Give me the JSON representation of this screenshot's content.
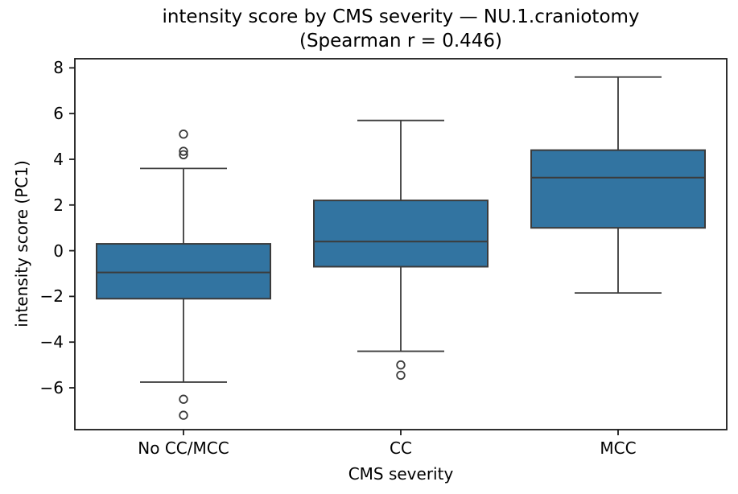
{
  "chart_data": {
    "type": "boxplot",
    "title": "intensity score by CMS severity — NU.1.craniotomy",
    "subtitle": "(Spearman r = 0.446)",
    "spearman_r": 0.446,
    "xlabel": "CMS severity",
    "ylabel": "intensity score (PC1)",
    "categories": [
      "No CC/MCC",
      "CC",
      "MCC"
    ],
    "ylim": [
      -7.83,
      8.4
    ],
    "yticks": [
      {
        "value": 8,
        "label": "8"
      },
      {
        "value": 6,
        "label": "6"
      },
      {
        "value": 4,
        "label": "4"
      },
      {
        "value": 2,
        "label": "2"
      },
      {
        "value": 0,
        "label": "0"
      },
      {
        "value": -2,
        "label": "−2"
      },
      {
        "value": -4,
        "label": "−4"
      },
      {
        "value": -6,
        "label": "−6"
      }
    ],
    "series": [
      {
        "category": "No CC/MCC",
        "whisker_low": -5.75,
        "q1": -2.1,
        "median": -0.95,
        "q3": 0.3,
        "whisker_high": 3.6,
        "outliers": [
          5.1,
          4.35,
          4.2,
          -6.5,
          -7.2
        ]
      },
      {
        "category": "CC",
        "whisker_low": -4.4,
        "q1": -0.7,
        "median": 0.4,
        "q3": 2.2,
        "whisker_high": 5.7,
        "outliers": [
          -5.0,
          -5.45
        ]
      },
      {
        "category": "MCC",
        "whisker_low": -1.85,
        "q1": 1.0,
        "median": 3.2,
        "q3": 4.4,
        "whisker_high": 7.6,
        "outliers": []
      }
    ],
    "layout": {
      "grid": false,
      "legend": "none"
    },
    "colors": {
      "box_fill": "#3274a1",
      "box_edge": "#3b3b3b",
      "spine": "#1a1a1a",
      "text": "#000000",
      "background": "#ffffff"
    }
  }
}
